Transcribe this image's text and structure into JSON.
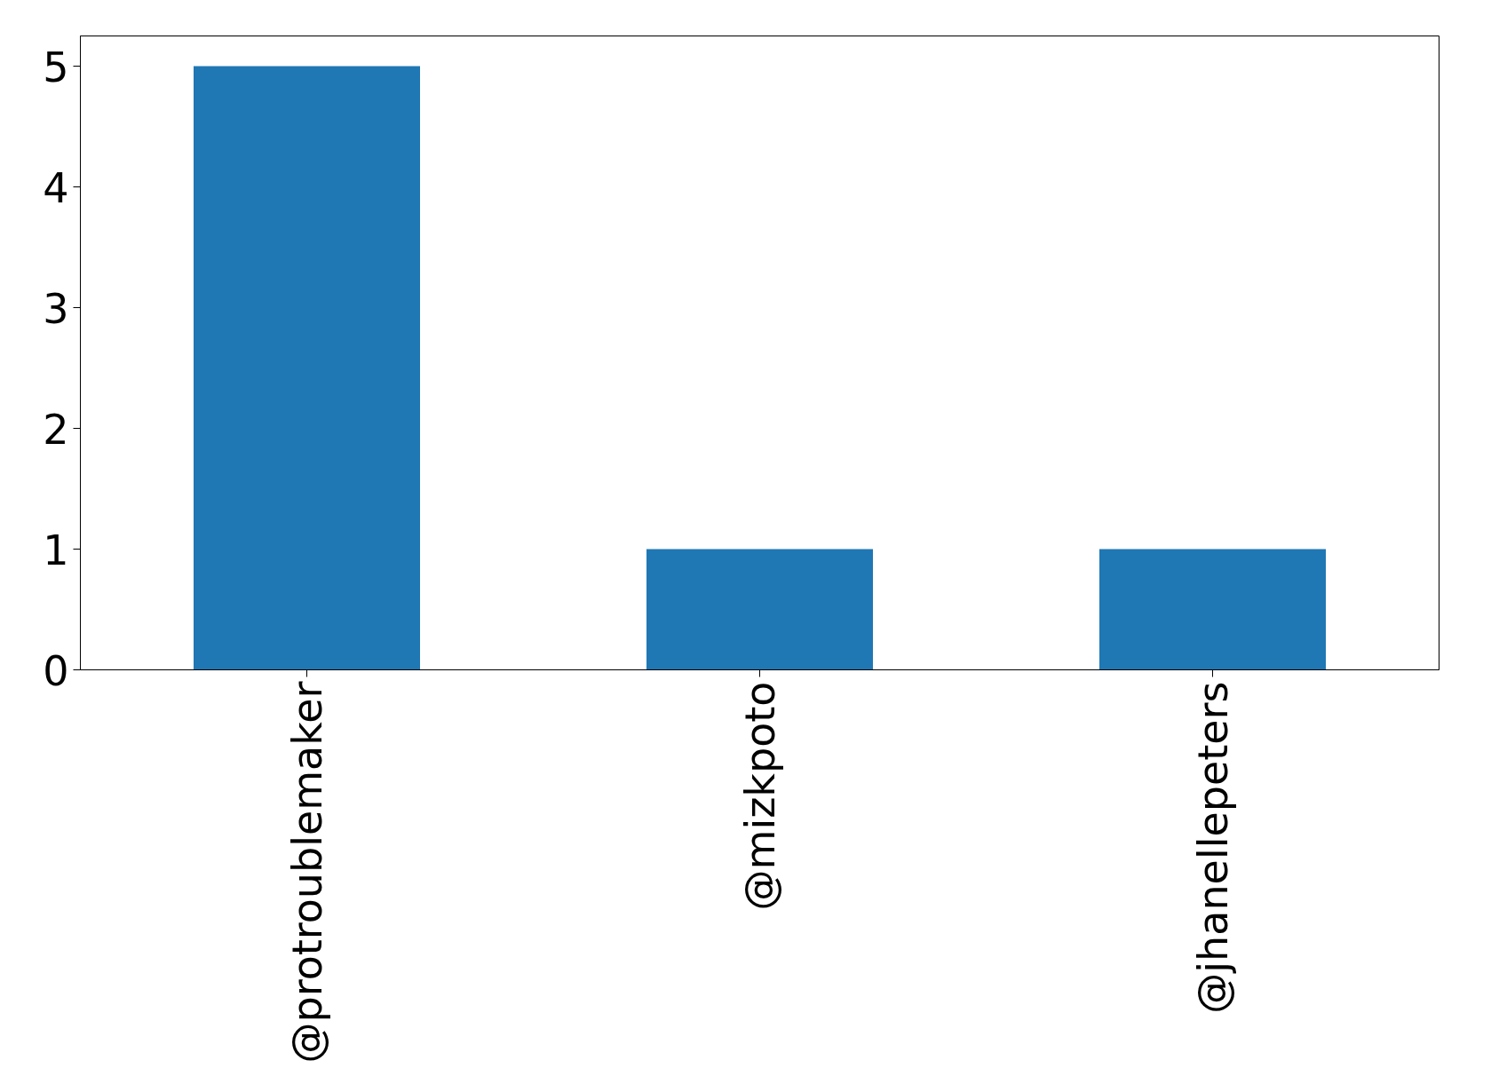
{
  "chart_data": {
    "type": "bar",
    "categories": [
      "@protroublemaker",
      "@mizkpoto",
      "@jhanellepeters"
    ],
    "values": [
      5,
      1,
      1
    ],
    "color": "#1f77b4",
    "ylim": [
      0,
      5.25
    ],
    "yticks": [
      0,
      1,
      2,
      3,
      4,
      5
    ],
    "grid": false
  }
}
